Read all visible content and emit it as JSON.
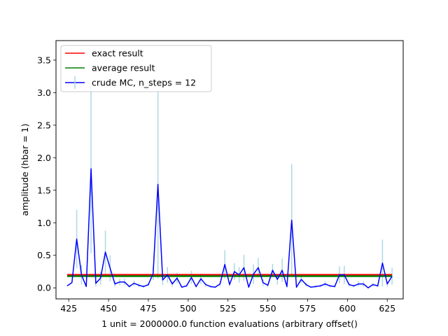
{
  "chart_data": {
    "type": "line",
    "title": "",
    "xlabel": "1 unit = 2000000.0 function evaluations (arbitrary offset()",
    "ylabel": "amplitude (hbar = 1)",
    "xlim": [
      417,
      635
    ],
    "ylim": [
      -0.17,
      3.8
    ],
    "xticks": [
      425,
      450,
      475,
      500,
      525,
      550,
      575,
      600,
      625
    ],
    "yticks": [
      0.0,
      0.5,
      1.0,
      1.5,
      2.0,
      2.5,
      3.0,
      3.5
    ],
    "grid": false,
    "legend_position": "upper-left",
    "colors": {
      "exact": "#ff0000",
      "average": "#008000",
      "crude": "#0000ff",
      "errorbar": "#add8e6"
    },
    "series": [
      {
        "name": "exact result",
        "type": "line",
        "x": [
          424,
          628
        ],
        "y": [
          0.2,
          0.2
        ]
      },
      {
        "name": "average result",
        "type": "line",
        "x": [
          424,
          628
        ],
        "y": [
          0.18,
          0.18
        ]
      },
      {
        "name": "crude MC, n_steps = 12",
        "type": "errorbar-line",
        "x": [
          424,
          427,
          430,
          433,
          436,
          439,
          442,
          445,
          448,
          451,
          454,
          457,
          460,
          463,
          466,
          469,
          472,
          475,
          478,
          481,
          484,
          487,
          490,
          493,
          496,
          499,
          502,
          505,
          508,
          511,
          514,
          517,
          520,
          523,
          526,
          529,
          532,
          535,
          538,
          541,
          544,
          547,
          550,
          553,
          556,
          559,
          562,
          565,
          568,
          571,
          574,
          577,
          580,
          583,
          586,
          589,
          592,
          595,
          598,
          601,
          604,
          607,
          610,
          613,
          616,
          619,
          622,
          625,
          628
        ],
        "y": [
          0.03,
          0.08,
          0.75,
          0.2,
          0.02,
          1.83,
          0.07,
          0.15,
          0.55,
          0.3,
          0.06,
          0.09,
          0.09,
          0.02,
          0.07,
          0.04,
          0.02,
          0.05,
          0.22,
          1.59,
          0.12,
          0.2,
          0.06,
          0.15,
          0.01,
          0.03,
          0.16,
          0.02,
          0.14,
          0.05,
          0.02,
          0.01,
          0.06,
          0.36,
          0.05,
          0.25,
          0.2,
          0.31,
          0.01,
          0.21,
          0.31,
          0.08,
          0.04,
          0.27,
          0.13,
          0.27,
          0.02,
          1.04,
          0.01,
          0.13,
          0.05,
          0.01,
          0.02,
          0.03,
          0.06,
          0.03,
          0.02,
          0.2,
          0.2,
          0.05,
          0.03,
          0.06,
          0.06,
          0.0,
          0.05,
          0.03,
          0.38,
          0.06,
          0.18
        ],
        "yerr": [
          0.0,
          0.0,
          0.45,
          0.15,
          0.0,
          1.3,
          0.05,
          0.1,
          0.33,
          0.2,
          0.04,
          0.05,
          0.05,
          0.02,
          0.04,
          0.03,
          0.02,
          0.03,
          0.1,
          1.45,
          0.08,
          0.12,
          0.04,
          0.08,
          0.01,
          0.02,
          0.1,
          0.02,
          0.08,
          0.03,
          0.02,
          0.01,
          0.04,
          0.22,
          0.03,
          0.13,
          0.12,
          0.2,
          0.01,
          0.15,
          0.15,
          0.05,
          0.03,
          0.1,
          0.08,
          0.18,
          0.02,
          0.86,
          0.01,
          0.06,
          0.03,
          0.01,
          0.02,
          0.02,
          0.04,
          0.02,
          0.02,
          0.13,
          0.14,
          0.03,
          0.02,
          0.04,
          0.04,
          0.0,
          0.03,
          0.02,
          0.36,
          0.04,
          0.13
        ]
      }
    ],
    "legend": [
      {
        "label": "exact result",
        "color": "#ff0000",
        "style": "line"
      },
      {
        "label": "average result",
        "color": "#008000",
        "style": "line"
      },
      {
        "label": "crude MC, n_steps = 12",
        "color": "#0000ff",
        "style": "errorbar"
      }
    ]
  }
}
